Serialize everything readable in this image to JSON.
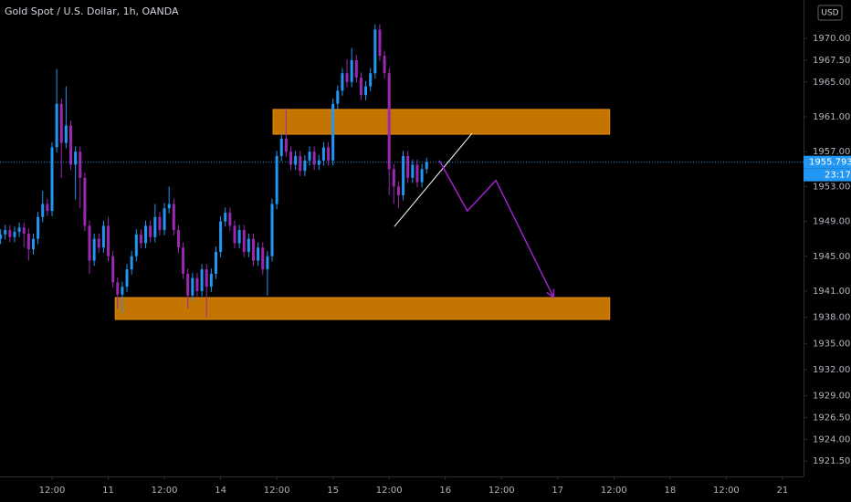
{
  "chart_data": {
    "type": "candlestick",
    "title": "Gold Spot / U.S. Dollar, 1h, OANDA",
    "currency": "USD",
    "last_price": 1955.793,
    "last_price_label": "1955.793",
    "countdown": "23:17",
    "up_color": "#2196f3",
    "down_color": "#9c27b0",
    "xlim": [
      0.885,
      172.5
    ],
    "ylim": [
      1919.74,
      1974.4
    ],
    "xticks": [
      {
        "value": 12,
        "label": "12:00"
      },
      {
        "value": 24,
        "label": "11"
      },
      {
        "value": 36,
        "label": "12:00"
      },
      {
        "value": 48,
        "label": "14"
      },
      {
        "value": 60,
        "label": "12:00"
      },
      {
        "value": 72,
        "label": "15"
      },
      {
        "value": 84,
        "label": "12:00"
      },
      {
        "value": 96,
        "label": "16"
      },
      {
        "value": 108,
        "label": "12:00"
      },
      {
        "value": 120,
        "label": "17"
      },
      {
        "value": 132,
        "label": "12:00"
      },
      {
        "value": 144,
        "label": "18"
      },
      {
        "value": 156,
        "label": "12:00"
      },
      {
        "value": 168,
        "label": "21"
      }
    ],
    "yticks": [
      {
        "value": 1970,
        "label": "1970.000"
      },
      {
        "value": 1967.5,
        "label": "1967.500"
      },
      {
        "value": 1965,
        "label": "1965.000"
      },
      {
        "value": 1961,
        "label": "1961.000"
      },
      {
        "value": 1957,
        "label": "1957.000"
      },
      {
        "value": 1953,
        "label": "1953.000"
      },
      {
        "value": 1949,
        "label": "1949.000"
      },
      {
        "value": 1945,
        "label": "1945.000"
      },
      {
        "value": 1941,
        "label": "1941.000"
      },
      {
        "value": 1938,
        "label": "1938.000"
      },
      {
        "value": 1935,
        "label": "1935.000"
      },
      {
        "value": 1932,
        "label": "1932.000"
      },
      {
        "value": 1929,
        "label": "1929.000"
      },
      {
        "value": 1926.5,
        "label": "1926.500"
      },
      {
        "value": 1924,
        "label": "1924.000"
      },
      {
        "value": 1921.5,
        "label": "1921.500"
      }
    ],
    "x": [
      1,
      2,
      3,
      4,
      5,
      6,
      7,
      8,
      9,
      10,
      11,
      12,
      13,
      14,
      15,
      16,
      17,
      18,
      19,
      20,
      21,
      22,
      23,
      24,
      25,
      26,
      27,
      28,
      29,
      30,
      31,
      32,
      33,
      34,
      35,
      36,
      37,
      38,
      39,
      40,
      41,
      42,
      43,
      44,
      45,
      46,
      47,
      48,
      49,
      50,
      51,
      52,
      53,
      54,
      55,
      56,
      57,
      58,
      59,
      60,
      61,
      62,
      63,
      64,
      65,
      66,
      67,
      68,
      69,
      70,
      71,
      72,
      73,
      74,
      75,
      76,
      77,
      78,
      79,
      80,
      81,
      82,
      83,
      84,
      85,
      86,
      87,
      88,
      89,
      90,
      91,
      92
    ],
    "open": [
      1947.0,
      1947.5,
      1948.0,
      1947.2,
      1947.8,
      1948.3,
      1947.6,
      1945.8,
      1947.0,
      1949.5,
      1951.0,
      1950.2,
      1957.5,
      1962.5,
      1958.0,
      1960.0,
      1955.5,
      1957.0,
      1954.0,
      1948.5,
      1944.5,
      1947.0,
      1946.0,
      1948.5,
      1945.0,
      1942.0,
      1940.6,
      1941.5,
      1943.5,
      1945.0,
      1947.5,
      1946.5,
      1948.5,
      1947.2,
      1949.5,
      1948.0,
      1950.5,
      1951.0,
      1948.0,
      1946.0,
      1943.0,
      1940.5,
      1942.5,
      1941.0,
      1943.5,
      1941.5,
      1943.0,
      1945.5,
      1949.0,
      1950.0,
      1948.5,
      1946.5,
      1948.0,
      1945.5,
      1947.0,
      1944.5,
      1946.0,
      1943.5,
      1945.0,
      1951.0,
      1956.5,
      1958.5,
      1957.0,
      1955.5,
      1956.5,
      1954.8,
      1956.0,
      1957.0,
      1955.5,
      1956.0,
      1957.5,
      1956.0,
      1962.5,
      1964.0,
      1966.0,
      1965.0,
      1967.5,
      1965.5,
      1963.5,
      1964.5,
      1966.0,
      1971.0,
      1968.0,
      1966.0,
      1955.0,
      1953.0,
      1952.0,
      1956.5,
      1954.0,
      1955.5,
      1953.5,
      1955.0
    ],
    "high": [
      1948.1,
      1948.6,
      1948.6,
      1948.4,
      1948.9,
      1948.9,
      1948.2,
      1947.6,
      1950.1,
      1952.5,
      1951.6,
      1958.1,
      1966.5,
      1963.1,
      1964.5,
      1960.6,
      1957.6,
      1957.6,
      1954.6,
      1949.1,
      1947.6,
      1947.6,
      1949.1,
      1949.5,
      1945.6,
      1942.6,
      1942.1,
      1944.1,
      1945.6,
      1948.1,
      1948.1,
      1949.1,
      1949.1,
      1951.0,
      1950.1,
      1951.1,
      1953.0,
      1951.6,
      1948.6,
      1946.6,
      1943.6,
      1943.1,
      1943.1,
      1944.1,
      1944.1,
      1943.6,
      1946.1,
      1949.6,
      1950.6,
      1950.6,
      1949.1,
      1948.6,
      1948.6,
      1947.6,
      1947.6,
      1946.6,
      1946.6,
      1945.6,
      1951.6,
      1957.1,
      1959.1,
      1962.0,
      1957.6,
      1957.1,
      1957.1,
      1956.6,
      1957.6,
      1957.6,
      1956.6,
      1958.1,
      1958.1,
      1963.1,
      1964.6,
      1966.6,
      1967.6,
      1968.9,
      1968.1,
      1966.1,
      1965.1,
      1966.6,
      1971.6,
      1971.6,
      1968.6,
      1966.6,
      1955.6,
      1953.6,
      1957.1,
      1957.1,
      1956.1,
      1956.1,
      1955.6,
      1956.3
    ],
    "low": [
      1946.4,
      1946.9,
      1946.6,
      1946.6,
      1947.2,
      1946.0,
      1944.5,
      1945.2,
      1946.4,
      1948.9,
      1949.6,
      1949.6,
      1956.9,
      1954.0,
      1957.4,
      1954.9,
      1951.5,
      1950.5,
      1947.9,
      1943.0,
      1943.9,
      1945.4,
      1945.4,
      1944.4,
      1941.4,
      1939.0,
      1938.5,
      1940.9,
      1942.9,
      1944.4,
      1945.9,
      1945.9,
      1946.6,
      1946.6,
      1947.4,
      1947.4,
      1949.9,
      1947.4,
      1945.4,
      1942.4,
      1939.0,
      1939.9,
      1940.4,
      1940.4,
      1938.0,
      1940.9,
      1942.4,
      1944.9,
      1948.4,
      1947.9,
      1945.9,
      1945.9,
      1944.9,
      1944.9,
      1943.9,
      1943.9,
      1942.9,
      1940.5,
      1944.4,
      1950.4,
      1955.9,
      1956.4,
      1954.9,
      1954.9,
      1954.2,
      1954.2,
      1955.4,
      1954.9,
      1954.9,
      1955.4,
      1955.4,
      1955.4,
      1961.9,
      1963.4,
      1964.4,
      1964.4,
      1964.9,
      1962.9,
      1962.9,
      1963.9,
      1965.4,
      1967.4,
      1965.4,
      1952.0,
      1951.0,
      1950.5,
      1951.4,
      1953.4,
      1953.4,
      1952.9,
      1952.9,
      1954.5
    ],
    "close": [
      1947.5,
      1948.0,
      1947.2,
      1947.8,
      1948.3,
      1947.6,
      1945.8,
      1947.0,
      1949.5,
      1951.0,
      1950.2,
      1957.5,
      1962.5,
      1958.0,
      1960.0,
      1955.5,
      1957.0,
      1954.0,
      1948.5,
      1944.5,
      1947.0,
      1946.0,
      1948.5,
      1945.0,
      1942.0,
      1940.6,
      1941.5,
      1943.5,
      1945.0,
      1947.5,
      1946.5,
      1948.5,
      1947.2,
      1949.5,
      1948.0,
      1950.5,
      1951.0,
      1948.0,
      1946.0,
      1943.0,
      1940.5,
      1942.5,
      1941.0,
      1943.5,
      1941.5,
      1943.0,
      1945.5,
      1949.0,
      1950.0,
      1948.5,
      1946.5,
      1948.0,
      1945.5,
      1947.0,
      1944.5,
      1946.0,
      1943.5,
      1945.0,
      1951.0,
      1956.5,
      1958.5,
      1957.0,
      1955.5,
      1956.5,
      1954.8,
      1956.0,
      1957.0,
      1955.5,
      1956.0,
      1957.5,
      1956.0,
      1962.5,
      1964.0,
      1966.0,
      1965.0,
      1967.5,
      1965.5,
      1963.5,
      1964.5,
      1966.0,
      1971.0,
      1968.0,
      1966.0,
      1955.0,
      1953.0,
      1952.0,
      1956.5,
      1954.0,
      1955.5,
      1953.5,
      1955.0,
      1955.793
    ],
    "zones": [
      {
        "x": [
          59.2,
          131.1
        ],
        "y": [
          1959.0,
          1961.85
        ]
      },
      {
        "x": [
          25.5,
          131.1
        ],
        "y": [
          1937.75,
          1940.26
        ]
      }
    ],
    "zone_color": "#c47400",
    "trend_line": {
      "x": [
        85.1,
        101.7
      ],
      "y": [
        1948.4,
        1959.1
      ],
      "color": "#ffffff"
    },
    "projection": {
      "x": [
        94.7,
        100.7,
        106.8,
        119.1
      ],
      "y": [
        1956.0,
        1950.2,
        1953.7,
        1940.3
      ],
      "color": "#a020d0"
    }
  }
}
